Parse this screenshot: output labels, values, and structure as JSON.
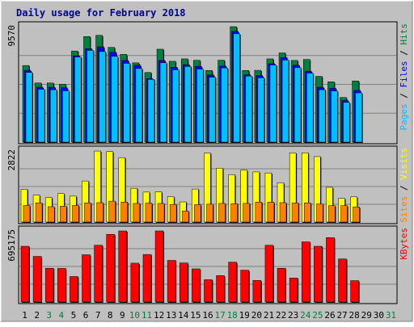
{
  "chart_data": {
    "type": "bar",
    "title": "Daily usage for February 2018",
    "days": [
      "1",
      "2",
      "3",
      "4",
      "5",
      "6",
      "7",
      "8",
      "9",
      "10",
      "11",
      "12",
      "13",
      "14",
      "15",
      "16",
      "17",
      "18",
      "19",
      "20",
      "21",
      "22",
      "23",
      "24",
      "25",
      "26",
      "27",
      "28",
      "29",
      "30",
      "31"
    ],
    "weekend_days": [
      "3",
      "4",
      "10",
      "11",
      "17",
      "18",
      "24",
      "25",
      "31"
    ],
    "panels": [
      {
        "id": "hits",
        "max_label": "9570",
        "ymax": 9570,
        "right_label": [
          "Pages",
          "Files",
          "Hits"
        ],
        "series": [
          {
            "name": "Hits",
            "color": "#008040",
            "values": [
              6350,
              4900,
              4900,
              4800,
              7550,
              8750,
              8850,
              7850,
              7270,
              6570,
              5770,
              7700,
              6700,
              6900,
              6780,
              5940,
              6790,
              9570,
              5940,
              5950,
              6900,
              7390,
              6770,
              6850,
              5450,
              5000,
              3700,
              5070,
              0,
              0,
              0
            ]
          },
          {
            "name": "Files",
            "color": "#0000ff",
            "values": [
              5950,
              4550,
              4550,
              4500,
              7150,
              7750,
              7900,
              7450,
              6770,
              6370,
              5270,
              6770,
              6200,
              6420,
              6280,
              5570,
              6300,
              9180,
              5590,
              5510,
              6500,
              7000,
              6370,
              5880,
              4550,
              4460,
              3450,
              4290,
              0,
              0,
              0
            ]
          },
          {
            "name": "Pages",
            "color": "#00c0ff",
            "values": [
              5780,
              4380,
              4340,
              4250,
              7050,
              7600,
              7510,
              7110,
              6530,
              6100,
              5200,
              6580,
              5990,
              6270,
              6050,
              5380,
              6150,
              8980,
              5470,
              5330,
              6380,
              6800,
              6170,
              5710,
              4340,
              4240,
              3290,
              4080,
              0,
              0,
              0
            ]
          }
        ]
      },
      {
        "id": "visits",
        "max_label": "2822",
        "ymax": 2822,
        "right_label": [
          "Sites",
          "Visits"
        ],
        "series": [
          {
            "name": "Visits",
            "color": "#ffff00",
            "values": [
              1300,
              1070,
              970,
              1130,
              1030,
              1630,
              2820,
              2800,
              2560,
              1340,
              1190,
              1200,
              1010,
              800,
              1310,
              2740,
              2140,
              1880,
              2060,
              1990,
              1950,
              1560,
              2750,
              2750,
              2600,
              1380,
              940,
              1000,
              0,
              0,
              0
            ]
          },
          {
            "name": "Sites",
            "color": "#ff8000",
            "values": [
              660,
              760,
              610,
              630,
              660,
              760,
              770,
              830,
              790,
              740,
              750,
              740,
              700,
              440,
              690,
              710,
              740,
              730,
              740,
              790,
              790,
              770,
              760,
              760,
              720,
              650,
              650,
              600,
              0,
              0,
              0
            ]
          }
        ]
      },
      {
        "id": "kbytes",
        "max_label": "695175",
        "ymax": 695175,
        "right_label": [
          "KBytes"
        ],
        "series": [
          {
            "name": "KBytes",
            "color": "#ff0000",
            "values": [
              545000,
              446000,
              330000,
              328000,
              249000,
              462000,
              555000,
              662000,
              695175,
              380000,
              465000,
              695175,
              407000,
              382000,
              324000,
              218000,
              258000,
              390000,
              311000,
              211000,
              555000,
              330000,
              234000,
              588000,
              545000,
              630000,
              421000,
              209000,
              0,
              0,
              0
            ]
          }
        ]
      }
    ]
  }
}
